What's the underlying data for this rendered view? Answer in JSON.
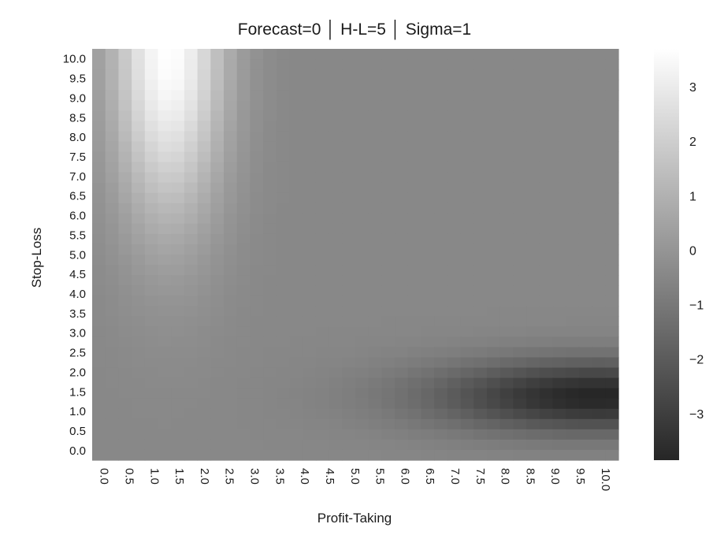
{
  "chart_data": {
    "type": "heatmap",
    "title": "Forecast=0 │ H-L=5 │ Sigma=1",
    "xlabel": "Profit-Taking",
    "ylabel": "Stop-Loss",
    "x_ticks": [
      "0.0",
      "0.5",
      "1.0",
      "1.5",
      "2.0",
      "2.5",
      "3.0",
      "3.5",
      "4.0",
      "4.5",
      "5.0",
      "5.5",
      "6.0",
      "6.5",
      "7.0",
      "7.5",
      "8.0",
      "8.5",
      "9.0",
      "9.5",
      "10.0"
    ],
    "y_ticks": [
      "0.0",
      "0.5",
      "1.0",
      "1.5",
      "2.0",
      "2.5",
      "3.0",
      "3.5",
      "4.0",
      "4.5",
      "5.0",
      "5.5",
      "6.0",
      "6.5",
      "7.0",
      "7.5",
      "8.0",
      "8.5",
      "9.0",
      "9.5",
      "10.0"
    ],
    "x_range": [
      0,
      10
    ],
    "y_range": [
      0,
      10
    ],
    "grid_points_per_axis": 40,
    "colorbar": {
      "ticks": [
        3,
        2,
        1,
        0,
        -1,
        -2,
        -3
      ],
      "tick_labels": [
        "3",
        "2",
        "1",
        "0",
        "−1",
        "−2",
        "−3"
      ],
      "range": [
        -3.85,
        3.7
      ],
      "colormap": "gray"
    },
    "surface_model": {
      "baseline": -0.45,
      "peak": {
        "value": 3.7,
        "x": 1.45,
        "y": 10.0,
        "spread_x": 0.75,
        "spread_y": 2.9
      },
      "trough": {
        "value": -3.85,
        "x": 9.6,
        "y": 1.55,
        "spread_x": 2.2,
        "spread_y": 0.62
      }
    },
    "grid": false
  }
}
